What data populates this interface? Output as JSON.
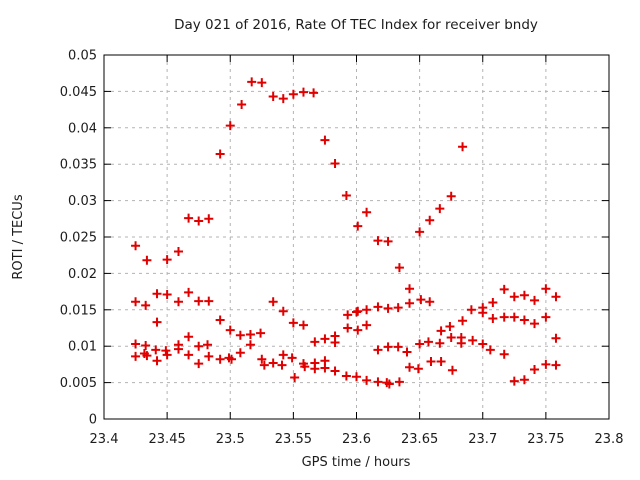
{
  "chart_data": {
    "type": "scatter",
    "title": "Day 021 of 2016, Rate Of TEC Index for receiver bndy",
    "xlabel": "GPS time / hours",
    "ylabel": "ROTI / TECUs",
    "xlim": [
      23.4,
      23.8
    ],
    "ylim": [
      0,
      0.05
    ],
    "grid": true,
    "legend": "none",
    "x_ticks": [
      {
        "value": 23.4,
        "label": "23.4"
      },
      {
        "value": 23.45,
        "label": "23.45"
      },
      {
        "value": 23.5,
        "label": "23.5"
      },
      {
        "value": 23.55,
        "label": "23.55"
      },
      {
        "value": 23.6,
        "label": "23.6"
      },
      {
        "value": 23.65,
        "label": "23.65"
      },
      {
        "value": 23.7,
        "label": "23.7"
      },
      {
        "value": 23.75,
        "label": "23.75"
      },
      {
        "value": 23.8,
        "label": "23.8"
      }
    ],
    "y_ticks": [
      {
        "value": 0,
        "label": "0"
      },
      {
        "value": 0.005,
        "label": "0.005"
      },
      {
        "value": 0.01,
        "label": "0.01"
      },
      {
        "value": 0.015,
        "label": "0.015"
      },
      {
        "value": 0.02,
        "label": "0.02"
      },
      {
        "value": 0.025,
        "label": "0.025"
      },
      {
        "value": 0.03,
        "label": "0.03"
      },
      {
        "value": 0.035,
        "label": "0.035"
      },
      {
        "value": 0.04,
        "label": "0.04"
      },
      {
        "value": 0.045,
        "label": "0.045"
      },
      {
        "value": 0.05,
        "label": "0.05"
      }
    ],
    "style": {
      "marker_shape": "plus",
      "marker_color": "#e00000",
      "grid_color": "#b3b3b3",
      "axis_color": "#000000",
      "text_color": "#1c1c1c"
    },
    "points": [
      [
        23.492,
        0.0364
      ],
      [
        23.5,
        0.0403
      ],
      [
        23.509,
        0.0432
      ],
      [
        23.517,
        0.0463
      ],
      [
        23.525,
        0.0462
      ],
      [
        23.534,
        0.0443
      ],
      [
        23.542,
        0.044
      ],
      [
        23.55,
        0.0446
      ],
      [
        23.558,
        0.0449
      ],
      [
        23.566,
        0.0448
      ],
      [
        23.575,
        0.0383
      ],
      [
        23.583,
        0.0351
      ],
      [
        23.592,
        0.0307
      ],
      [
        23.601,
        0.0265
      ],
      [
        23.608,
        0.0284
      ],
      [
        23.617,
        0.0245
      ],
      [
        23.625,
        0.0244
      ],
      [
        23.634,
        0.0208
      ],
      [
        23.642,
        0.0179
      ],
      [
        23.65,
        0.0257
      ],
      [
        23.658,
        0.0273
      ],
      [
        23.666,
        0.0289
      ],
      [
        23.675,
        0.0306
      ],
      [
        23.684,
        0.0374
      ],
      [
        23.425,
        0.0238
      ],
      [
        23.434,
        0.0218
      ],
      [
        23.45,
        0.0219
      ],
      [
        23.459,
        0.023
      ],
      [
        23.467,
        0.0276
      ],
      [
        23.475,
        0.0272
      ],
      [
        23.483,
        0.0275
      ],
      [
        23.425,
        0.0161
      ],
      [
        23.433,
        0.0156
      ],
      [
        23.442,
        0.0172
      ],
      [
        23.45,
        0.0171
      ],
      [
        23.459,
        0.0161
      ],
      [
        23.467,
        0.0174
      ],
      [
        23.475,
        0.0162
      ],
      [
        23.483,
        0.0162
      ],
      [
        23.442,
        0.0133
      ],
      [
        23.492,
        0.0136
      ],
      [
        23.425,
        0.0103
      ],
      [
        23.433,
        0.0101
      ],
      [
        23.459,
        0.0102
      ],
      [
        23.467,
        0.0113
      ],
      [
        23.475,
        0.01
      ],
      [
        23.482,
        0.0102
      ],
      [
        23.425,
        0.0086
      ],
      [
        23.432,
        0.009
      ],
      [
        23.434,
        0.0087
      ],
      [
        23.441,
        0.0095
      ],
      [
        23.442,
        0.008
      ],
      [
        23.449,
        0.0094
      ],
      [
        23.45,
        0.0088
      ],
      [
        23.459,
        0.0096
      ],
      [
        23.467,
        0.0088
      ],
      [
        23.475,
        0.0076
      ],
      [
        23.483,
        0.0086
      ],
      [
        23.492,
        0.0082
      ],
      [
        23.499,
        0.0084
      ],
      [
        23.501,
        0.0082
      ],
      [
        23.5,
        0.0122
      ],
      [
        23.508,
        0.0115
      ],
      [
        23.508,
        0.0091
      ],
      [
        23.516,
        0.0116
      ],
      [
        23.516,
        0.0102
      ],
      [
        23.524,
        0.0118
      ],
      [
        23.525,
        0.0082
      ],
      [
        23.527,
        0.0074
      ],
      [
        23.534,
        0.0161
      ],
      [
        23.542,
        0.0148
      ],
      [
        23.55,
        0.0132
      ],
      [
        23.558,
        0.0129
      ],
      [
        23.534,
        0.0077
      ],
      [
        23.541,
        0.0074
      ],
      [
        23.542,
        0.0088
      ],
      [
        23.549,
        0.0084
      ],
      [
        23.551,
        0.0057
      ],
      [
        23.558,
        0.0076
      ],
      [
        23.559,
        0.0072
      ],
      [
        23.567,
        0.0106
      ],
      [
        23.567,
        0.0077
      ],
      [
        23.567,
        0.0069
      ],
      [
        23.575,
        0.011
      ],
      [
        23.575,
        0.008
      ],
      [
        23.575,
        0.007
      ],
      [
        23.583,
        0.0114
      ],
      [
        23.583,
        0.0105
      ],
      [
        23.583,
        0.0066
      ],
      [
        23.592,
        0.0059
      ],
      [
        23.593,
        0.0143
      ],
      [
        23.593,
        0.0125
      ],
      [
        23.6,
        0.0147
      ],
      [
        23.601,
        0.0148
      ],
      [
        23.601,
        0.0122
      ],
      [
        23.6,
        0.0058
      ],
      [
        23.608,
        0.015
      ],
      [
        23.608,
        0.0129
      ],
      [
        23.608,
        0.0053
      ],
      [
        23.617,
        0.0154
      ],
      [
        23.617,
        0.0095
      ],
      [
        23.617,
        0.0051
      ],
      [
        23.625,
        0.0152
      ],
      [
        23.625,
        0.0099
      ],
      [
        23.624,
        0.005
      ],
      [
        23.626,
        0.0048
      ],
      [
        23.633,
        0.0153
      ],
      [
        23.633,
        0.0099
      ],
      [
        23.634,
        0.0051
      ],
      [
        23.64,
        0.0092
      ],
      [
        23.642,
        0.0159
      ],
      [
        23.642,
        0.0071
      ],
      [
        23.649,
        0.0069
      ],
      [
        23.651,
        0.0164
      ],
      [
        23.65,
        0.0103
      ],
      [
        23.657,
        0.0106
      ],
      [
        23.658,
        0.0161
      ],
      [
        23.659,
        0.0079
      ],
      [
        23.666,
        0.0104
      ],
      [
        23.667,
        0.0121
      ],
      [
        23.667,
        0.0079
      ],
      [
        23.674,
        0.0127
      ],
      [
        23.675,
        0.0112
      ],
      [
        23.676,
        0.0067
      ],
      [
        23.683,
        0.0112
      ],
      [
        23.683,
        0.0104
      ],
      [
        23.684,
        0.0135
      ],
      [
        23.691,
        0.015
      ],
      [
        23.692,
        0.0108
      ],
      [
        23.7,
        0.0153
      ],
      [
        23.7,
        0.0146
      ],
      [
        23.7,
        0.0103
      ],
      [
        23.706,
        0.0095
      ],
      [
        23.708,
        0.016
      ],
      [
        23.708,
        0.0138
      ],
      [
        23.717,
        0.0178
      ],
      [
        23.717,
        0.014
      ],
      [
        23.717,
        0.0089
      ],
      [
        23.725,
        0.0168
      ],
      [
        23.725,
        0.014
      ],
      [
        23.725,
        0.0052
      ],
      [
        23.733,
        0.017
      ],
      [
        23.733,
        0.0136
      ],
      [
        23.733,
        0.0054
      ],
      [
        23.741,
        0.0163
      ],
      [
        23.741,
        0.0131
      ],
      [
        23.741,
        0.0068
      ],
      [
        23.75,
        0.0179
      ],
      [
        23.75,
        0.014
      ],
      [
        23.75,
        0.0075
      ],
      [
        23.758,
        0.0168
      ],
      [
        23.758,
        0.0111
      ],
      [
        23.758,
        0.0074
      ]
    ]
  }
}
